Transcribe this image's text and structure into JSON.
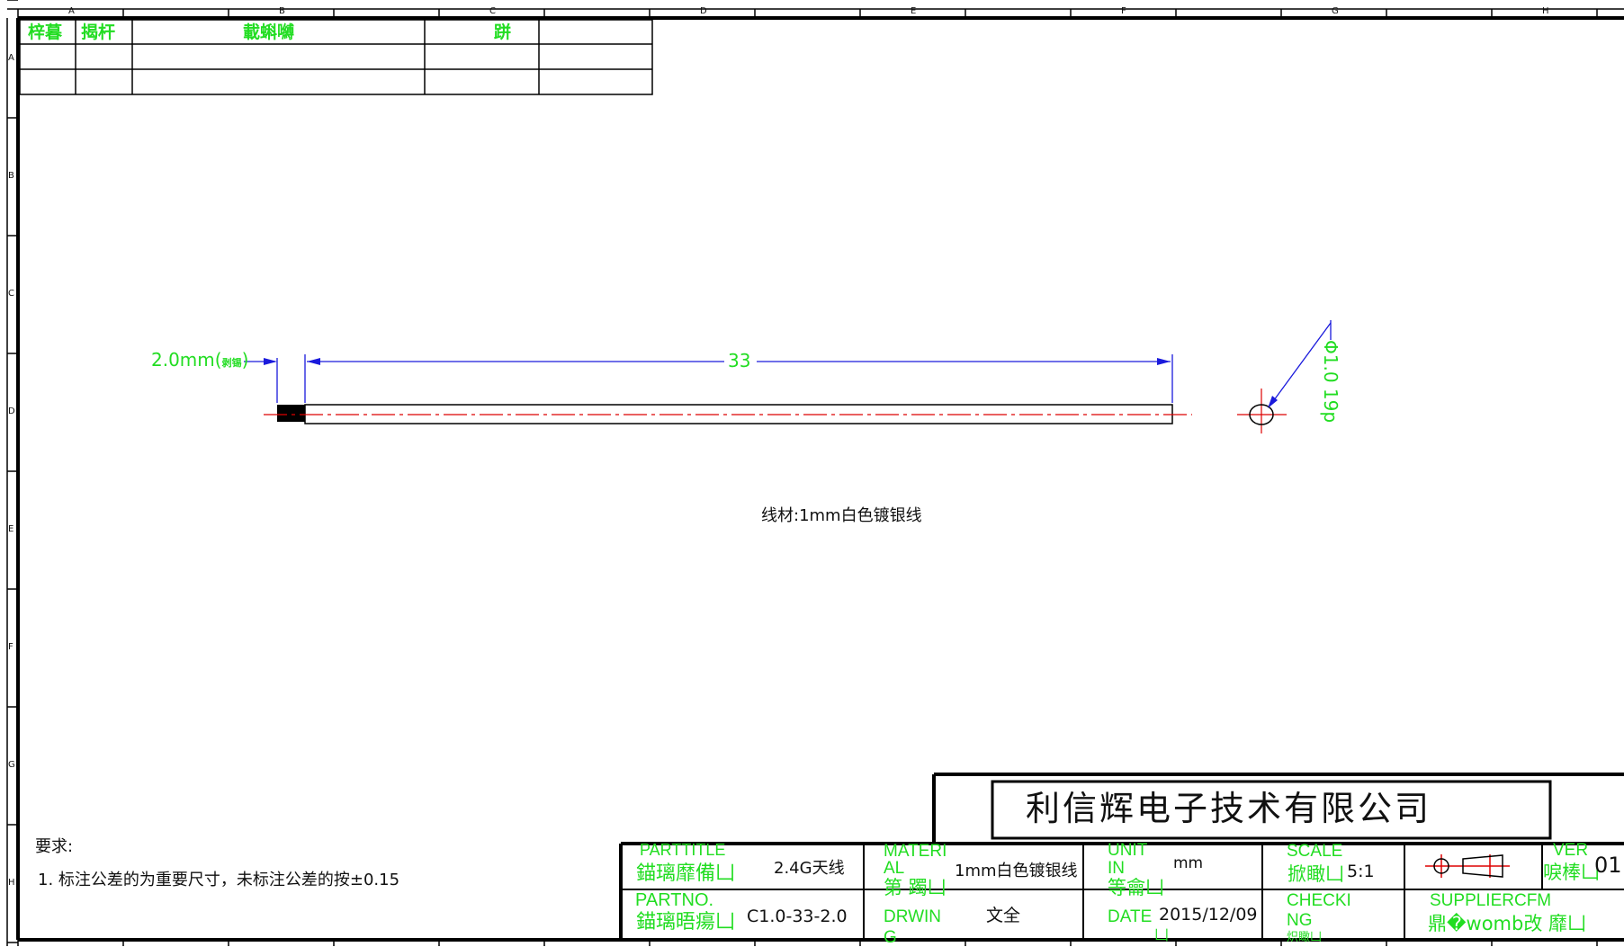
{
  "colors": {
    "frame": "#000000",
    "label_green": "#22dd22",
    "dimension_blue": "#1a1adc",
    "centerline_red": "#dd0000"
  },
  "border": {
    "columns": [
      "A",
      "B",
      "C",
      "D",
      "E",
      "F",
      "G",
      "H"
    ],
    "rows": [
      "A",
      "B",
      "C",
      "D",
      "E",
      "F",
      "G",
      "H"
    ]
  },
  "revision_table": {
    "headers": [
      "梓暮",
      "揭杆",
      "載蝌嚩",
      "跰",
      ""
    ]
  },
  "drawing": {
    "dim_left": "2.0mm(",
    "dim_left_small": "剥锡",
    "dim_length": "33",
    "diameter_label": "Φ1.0 19p",
    "material_note": "线材:1mm白色镀银线"
  },
  "requirements": {
    "title": "要求:",
    "item1": "1. 标注公差的为重要尺寸，未标注公差的按±0.15"
  },
  "title_block": {
    "company": "利信辉电子技术有限公司",
    "part_title_label_en": "PARTTITLE",
    "part_title_label_cn": "錨璃靡備凵",
    "part_title_value": "2.4G天线",
    "part_no_label_en": "PARTNO.",
    "part_no_label_cn": "錨璃晤瘍凵",
    "part_no_value": "C1.0-33-2.0",
    "material_label_en1": "MATERI",
    "material_label_en2": "AL",
    "material_label_cn": "第 躅凵",
    "material_value": "1mm白色镀银线",
    "drawing_label_en1": "DRWIN",
    "drawing_label_en2": "G",
    "drawing_value": "文全",
    "unit_label_en1": "UNIT",
    "unit_label_en2": "IN",
    "unit_label_cn": "等龠凵",
    "unit_value": "mm",
    "date_label_en": "DATE",
    "date_label_cn": "凵",
    "date_value": "2015/12/09",
    "scale_label_en": "SCALE",
    "scale_label_cn": "掀瞰凵",
    "scale_value": "5:1",
    "checking_label_en1": "CHECKI",
    "checking_label_en2": "NG",
    "checking_label_cn": "炽瞰凵",
    "supplier_label_en": "SUPPLIERCFM",
    "supplier_label_cn": "鼎�womb改   靡凵",
    "ver_label_en": "VER",
    "ver_label_cn": "唳棒凵",
    "ver_value": "01"
  }
}
